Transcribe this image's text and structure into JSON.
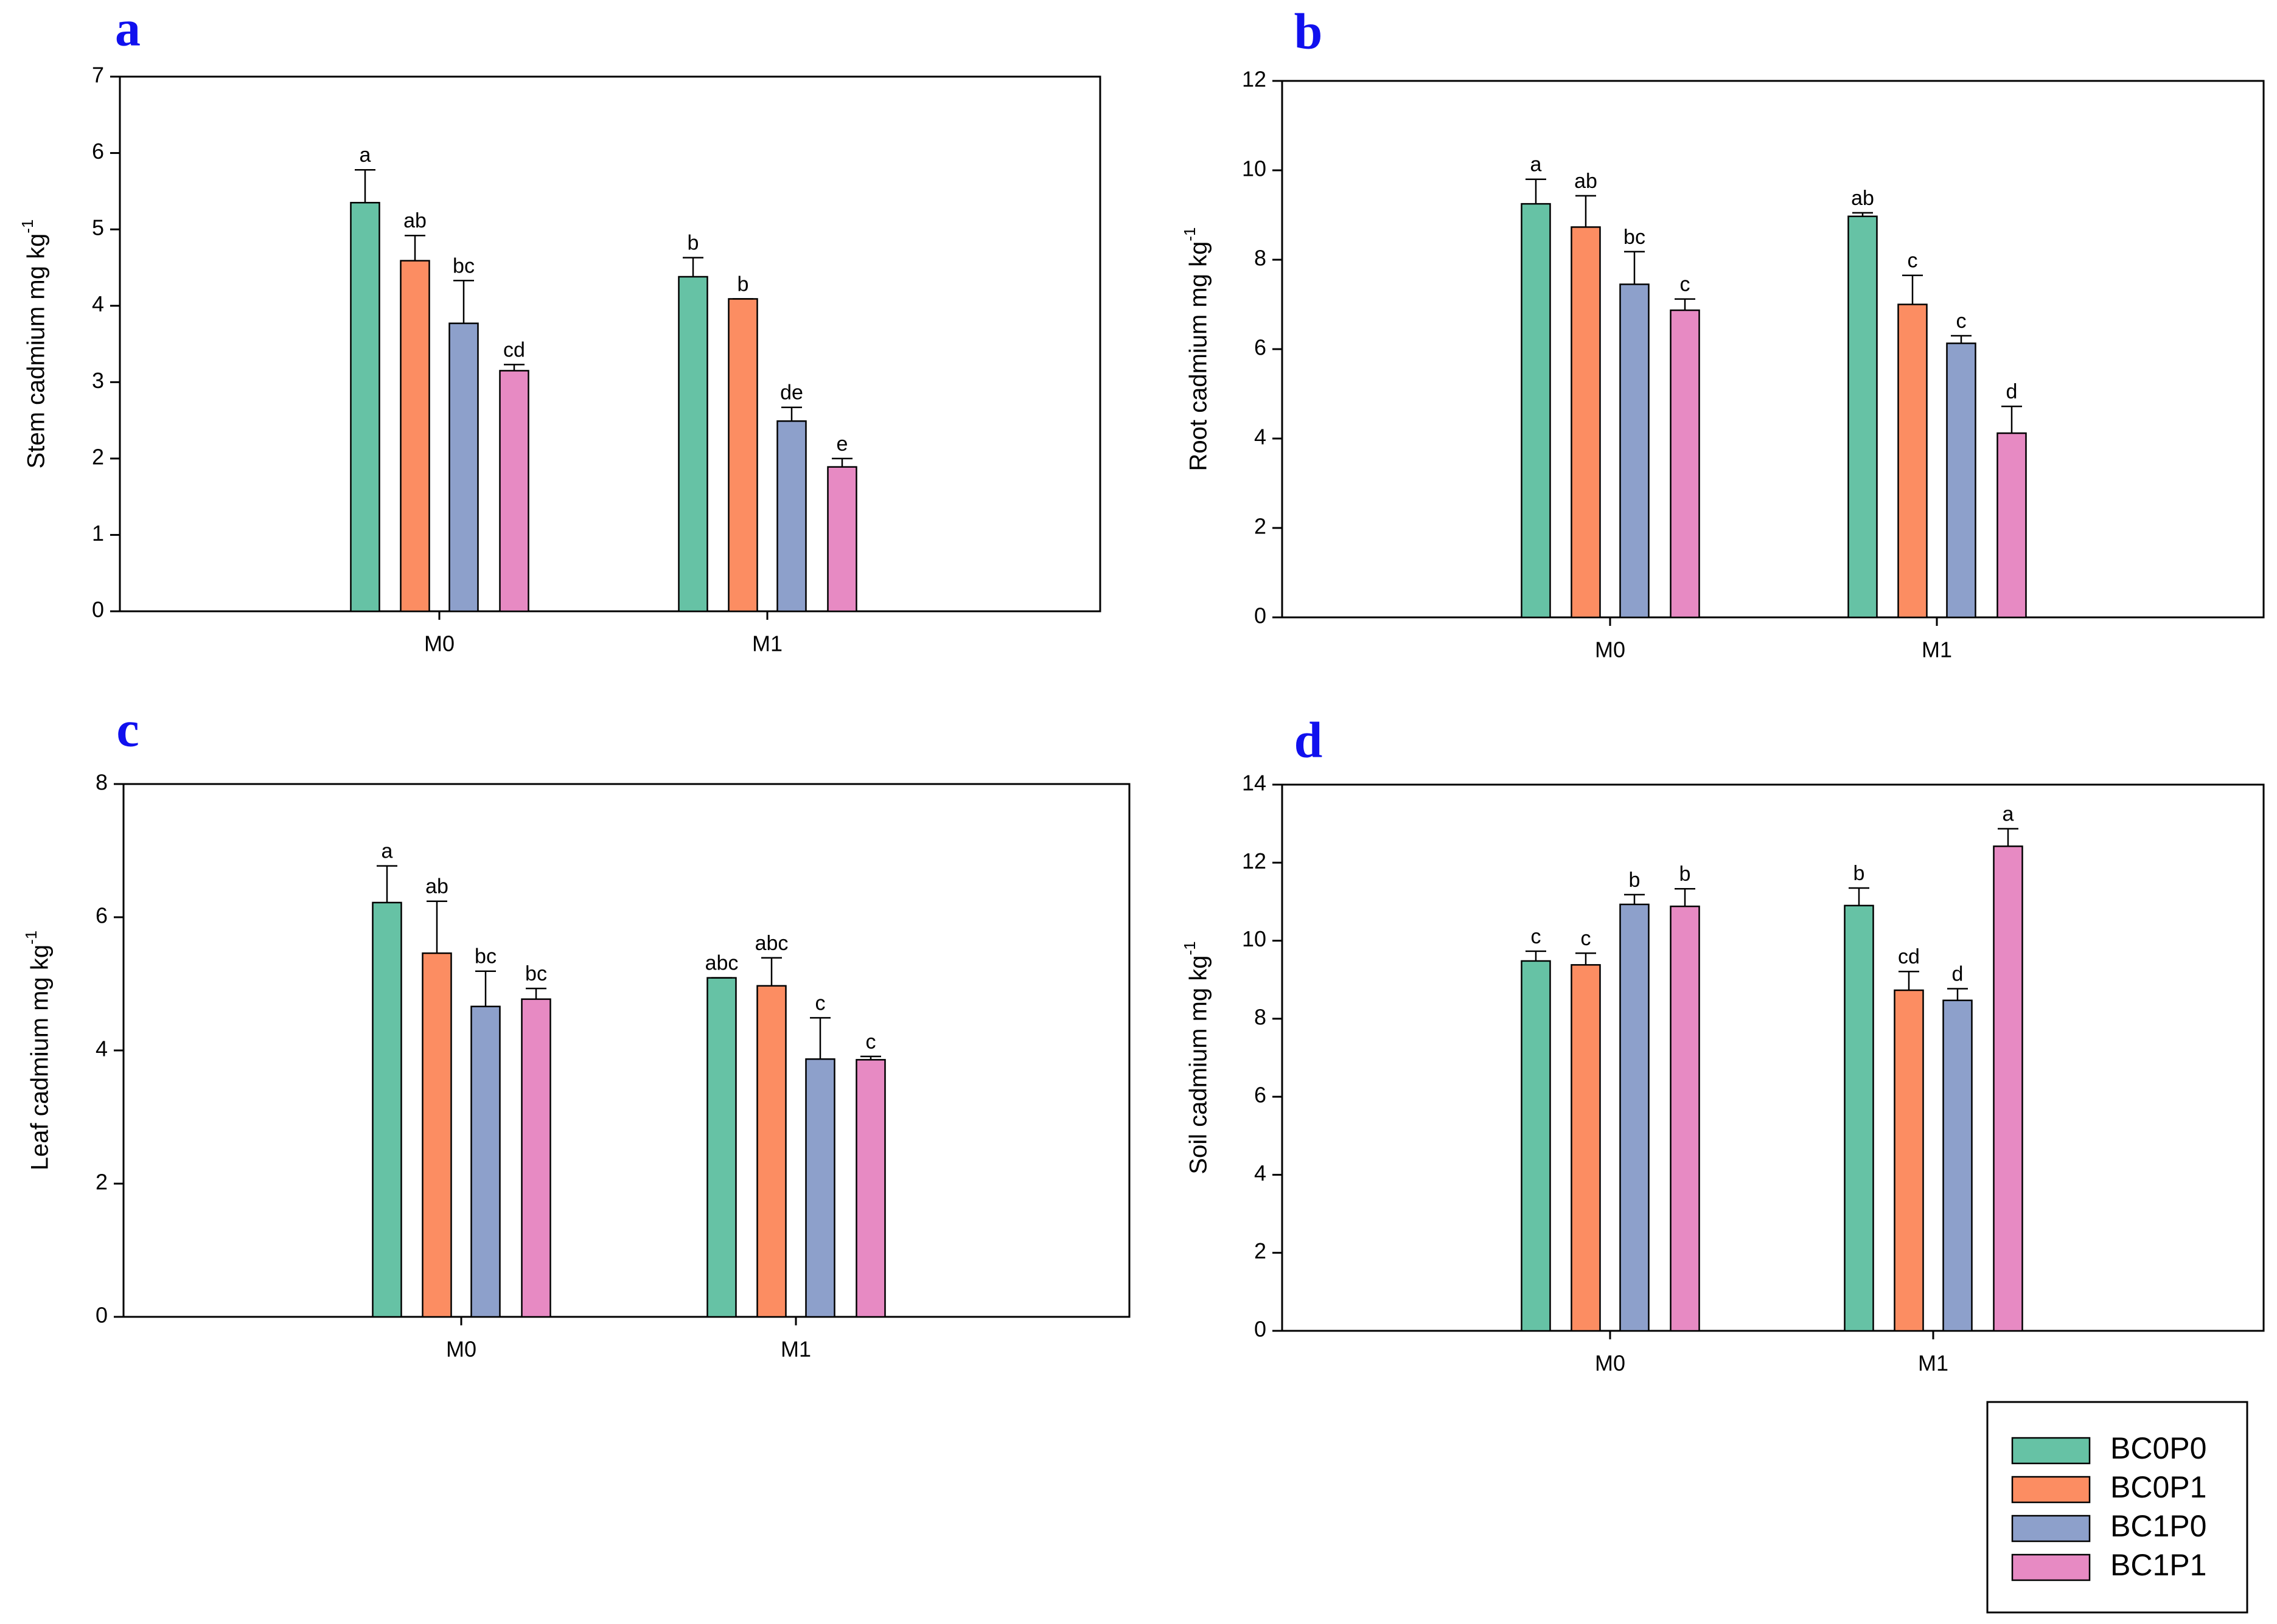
{
  "colors": {
    "BC0P0": "#66c2a5",
    "BC0P1": "#fc8d62",
    "BC1P0": "#8da0cb",
    "BC1P1": "#e78ac3",
    "panel_letter": "#1010ee"
  },
  "legend": {
    "position": "bottom-right",
    "entries": [
      "BC0P0",
      "BC0P1",
      "BC1P0",
      "BC1P1"
    ]
  },
  "chart_data": [
    {
      "panel": "a",
      "type": "bar",
      "ylabel": "Stem cadmium mg kg",
      "ylabel_sup": "-1",
      "ylim": [
        0,
        7
      ],
      "yticks": [
        "0",
        "1",
        "2",
        "3",
        "4",
        "5",
        "6",
        "7"
      ],
      "categories": [
        "M0",
        "M1"
      ],
      "series": [
        {
          "name": "BC0P0",
          "values": [
            5.35,
            4.38
          ],
          "errors": [
            0.43,
            0.25
          ],
          "letters": [
            "a",
            "b"
          ]
        },
        {
          "name": "BC0P1",
          "values": [
            4.59,
            4.09
          ],
          "errors": [
            0.33,
            0.0
          ],
          "letters": [
            "ab",
            "b"
          ]
        },
        {
          "name": "BC1P0",
          "values": [
            3.77,
            2.49
          ],
          "errors": [
            0.56,
            0.18
          ],
          "letters": [
            "bc",
            "de"
          ]
        },
        {
          "name": "BC1P1",
          "values": [
            3.15,
            1.89
          ],
          "errors": [
            0.08,
            0.11
          ],
          "letters": [
            "cd",
            "e"
          ]
        }
      ]
    },
    {
      "panel": "b",
      "type": "bar",
      "ylabel": "Root cadmium mg kg",
      "ylabel_sup": "-1",
      "ylim": [
        0,
        12
      ],
      "yticks": [
        "0",
        "2",
        "4",
        "6",
        "8",
        "10",
        "12"
      ],
      "categories": [
        "M0",
        "M1"
      ],
      "series": [
        {
          "name": "BC0P0",
          "values": [
            9.25,
            8.97
          ],
          "errors": [
            0.55,
            0.08
          ],
          "letters": [
            "a",
            "ab"
          ]
        },
        {
          "name": "BC0P1",
          "values": [
            8.73,
            7.0
          ],
          "errors": [
            0.7,
            0.65
          ],
          "letters": [
            "ab",
            "c"
          ]
        },
        {
          "name": "BC1P0",
          "values": [
            7.45,
            6.13
          ],
          "errors": [
            0.73,
            0.17
          ],
          "letters": [
            "bc",
            "c"
          ]
        },
        {
          "name": "BC1P1",
          "values": [
            6.87,
            4.12
          ],
          "errors": [
            0.25,
            0.6
          ],
          "letters": [
            "c",
            "d"
          ]
        }
      ]
    },
    {
      "panel": "c",
      "type": "bar",
      "ylabel": "Leaf cadmium mg kg",
      "ylabel_sup": "-1",
      "ylim": [
        0,
        8
      ],
      "yticks": [
        "0",
        "2",
        "4",
        "6",
        "8"
      ],
      "categories": [
        "M0",
        "M1"
      ],
      "series": [
        {
          "name": "BC0P0",
          "values": [
            6.22,
            5.09
          ],
          "errors": [
            0.55,
            0.0
          ],
          "letters": [
            "a",
            "abc"
          ]
        },
        {
          "name": "BC0P1",
          "values": [
            5.46,
            4.97
          ],
          "errors": [
            0.78,
            0.42
          ],
          "letters": [
            "ab",
            "abc"
          ]
        },
        {
          "name": "BC1P0",
          "values": [
            4.66,
            3.87
          ],
          "errors": [
            0.53,
            0.62
          ],
          "letters": [
            "bc",
            "c"
          ]
        },
        {
          "name": "BC1P1",
          "values": [
            4.77,
            3.86
          ],
          "errors": [
            0.16,
            0.05
          ],
          "letters": [
            "bc",
            "c"
          ]
        }
      ]
    },
    {
      "panel": "d",
      "type": "bar",
      "ylabel": "Soil cadmium mg kg",
      "ylabel_sup": "-1",
      "ylim": [
        0,
        14
      ],
      "yticks": [
        "0",
        "2",
        "4",
        "6",
        "8",
        "10",
        "12",
        "14"
      ],
      "categories": [
        "M0",
        "M1"
      ],
      "series": [
        {
          "name": "BC0P0",
          "values": [
            9.48,
            10.9
          ],
          "errors": [
            0.25,
            0.45
          ],
          "letters": [
            "c",
            "b"
          ]
        },
        {
          "name": "BC0P1",
          "values": [
            9.38,
            8.73
          ],
          "errors": [
            0.3,
            0.48
          ],
          "letters": [
            "c",
            "cd"
          ]
        },
        {
          "name": "BC1P0",
          "values": [
            10.93,
            8.47
          ],
          "errors": [
            0.25,
            0.3
          ],
          "letters": [
            "b",
            "d"
          ]
        },
        {
          "name": "BC1P1",
          "values": [
            10.88,
            12.42
          ],
          "errors": [
            0.45,
            0.45
          ],
          "letters": [
            "b",
            "a"
          ]
        }
      ]
    }
  ]
}
